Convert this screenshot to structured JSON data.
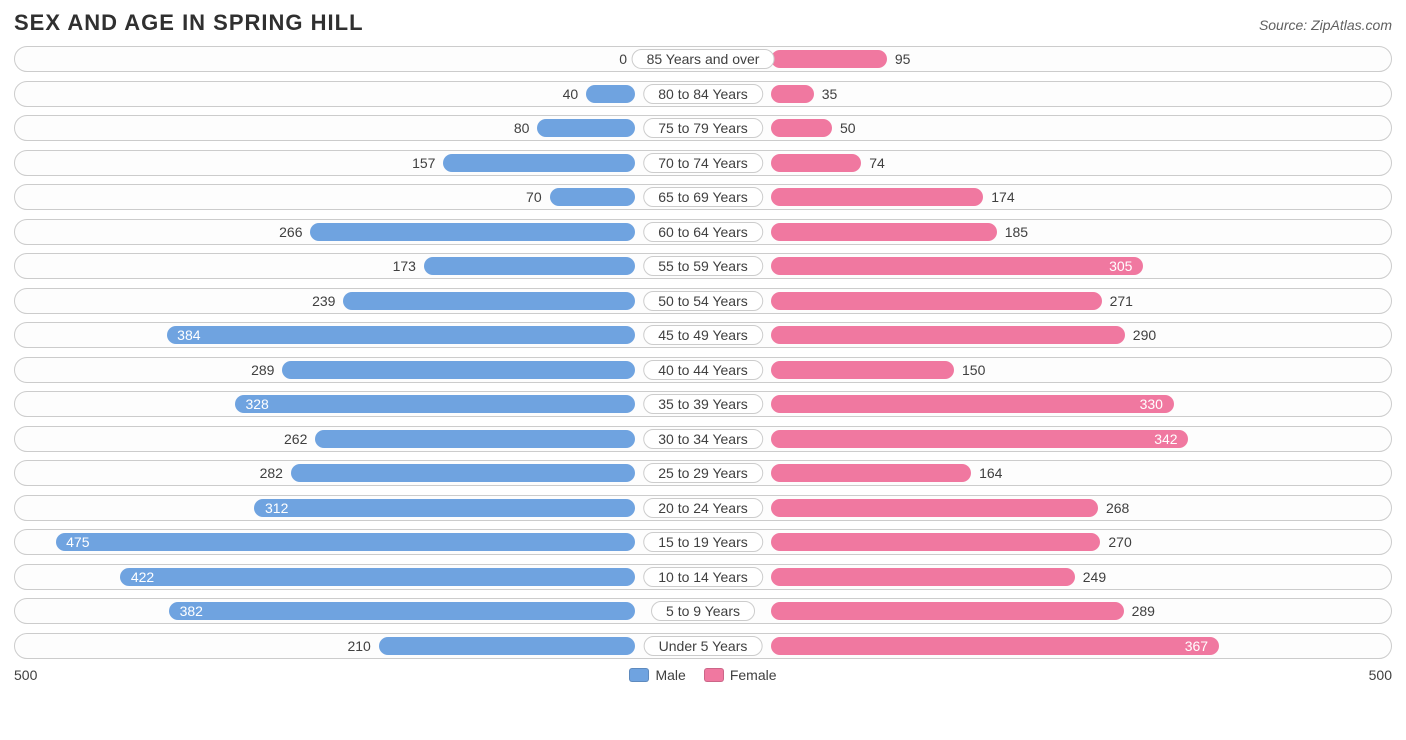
{
  "title": "SEX AND AGE IN SPRING HILL",
  "source": "Source: ZipAtlas.com",
  "chart": {
    "type": "population-pyramid",
    "max": 500,
    "axis_label_left": "500",
    "axis_label_right": "500",
    "male_color": "#6fa3e0",
    "female_color": "#f078a0",
    "track_border": "#cccccc",
    "background": "#ffffff",
    "label_fontsize": 14,
    "title_fontsize": 22,
    "legend": {
      "male": "Male",
      "female": "Female"
    },
    "rows": [
      {
        "label": "85 Years and over",
        "male": 0,
        "female": 95
      },
      {
        "label": "80 to 84 Years",
        "male": 40,
        "female": 35
      },
      {
        "label": "75 to 79 Years",
        "male": 80,
        "female": 50
      },
      {
        "label": "70 to 74 Years",
        "male": 157,
        "female": 74
      },
      {
        "label": "65 to 69 Years",
        "male": 70,
        "female": 174
      },
      {
        "label": "60 to 64 Years",
        "male": 266,
        "female": 185
      },
      {
        "label": "55 to 59 Years",
        "male": 173,
        "female": 305
      },
      {
        "label": "50 to 54 Years",
        "male": 239,
        "female": 271
      },
      {
        "label": "45 to 49 Years",
        "male": 384,
        "female": 290
      },
      {
        "label": "40 to 44 Years",
        "male": 289,
        "female": 150
      },
      {
        "label": "35 to 39 Years",
        "male": 328,
        "female": 330
      },
      {
        "label": "30 to 34 Years",
        "male": 262,
        "female": 342
      },
      {
        "label": "25 to 29 Years",
        "male": 282,
        "female": 164
      },
      {
        "label": "20 to 24 Years",
        "male": 312,
        "female": 268
      },
      {
        "label": "15 to 19 Years",
        "male": 475,
        "female": 270
      },
      {
        "label": "10 to 14 Years",
        "male": 422,
        "female": 249
      },
      {
        "label": "5 to 9 Years",
        "male": 382,
        "female": 289
      },
      {
        "label": "Under 5 Years",
        "male": 210,
        "female": 367
      }
    ]
  }
}
